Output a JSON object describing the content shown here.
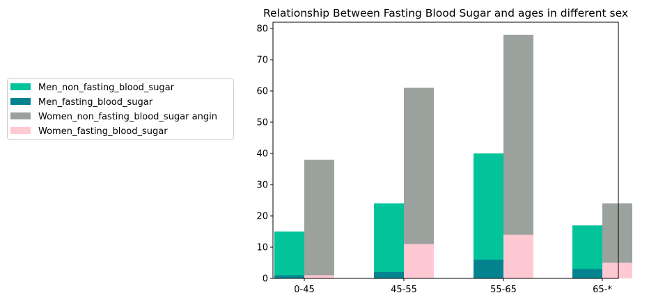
{
  "chart_data": {
    "type": "bar",
    "title": "Relationship Between Fasting Blood Sugar and ages in different sex",
    "xlabel": "",
    "ylabel": "",
    "categories": [
      "0-45",
      "45-55",
      "55-65",
      "65-*"
    ],
    "ylim": [
      0,
      82
    ],
    "yticks": [
      0,
      10,
      20,
      30,
      40,
      50,
      60,
      70,
      80
    ],
    "grid": false,
    "legend_position": "left-outside",
    "series": [
      {
        "name": "Men_non_fasting_blood_sugar",
        "group": "men",
        "stack": "top",
        "color": "#03c39b",
        "values": [
          15,
          24,
          40,
          17
        ]
      },
      {
        "name": "Men_fasting_blood_sugar",
        "group": "men",
        "stack": "bottom",
        "color": "#04838f",
        "values": [
          1,
          2,
          6,
          3
        ]
      },
      {
        "name": "Women_non_fasting_blood_sugar angin",
        "group": "women",
        "stack": "top",
        "color": "#9ba19d",
        "values": [
          38,
          61,
          78,
          24
        ]
      },
      {
        "name": "Women_fasting_blood_sugar",
        "group": "women",
        "stack": "bottom",
        "color": "#ffc9d4",
        "values": [
          1,
          11,
          14,
          5
        ]
      }
    ]
  }
}
